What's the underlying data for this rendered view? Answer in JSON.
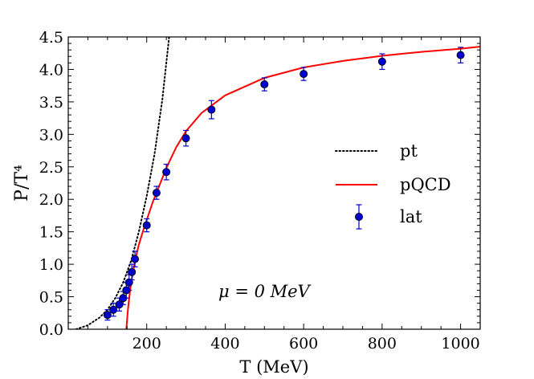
{
  "chart_data": {
    "type": "scatter",
    "title": "",
    "xlabel": "T (MeV)",
    "ylabel": "P/T⁴",
    "xlim": [
      0,
      1050
    ],
    "ylim": [
      0,
      4.5
    ],
    "x_ticks": [
      200,
      400,
      600,
      800,
      1000
    ],
    "y_ticks": [
      0.0,
      0.5,
      1.0,
      1.5,
      2.0,
      2.5,
      3.0,
      3.5,
      4.0,
      4.5
    ],
    "x_tick_labels": [
      "200",
      "400",
      "600",
      "800",
      "1000"
    ],
    "y_tick_labels": [
      "0.0",
      "0.5",
      "1.0",
      "1.5",
      "2.0",
      "2.5",
      "3.0",
      "3.5",
      "4.0",
      "4.5"
    ],
    "annotation": "μ = 0 MeV",
    "legend": {
      "placement": "center-right",
      "entries": [
        {
          "label": "pt",
          "style": "dotted",
          "color": "#000000"
        },
        {
          "label": "pQCD",
          "style": "solid",
          "color": "#ff0000"
        },
        {
          "label": "lat",
          "style": "marker-errorbar",
          "color": "#0000cc"
        }
      ]
    },
    "series": [
      {
        "name": "pt",
        "kind": "line",
        "style": "dotted",
        "color": "#000000",
        "x": [
          20,
          50,
          80,
          100,
          120,
          140,
          160,
          180,
          200,
          220,
          240,
          257
        ],
        "y": [
          0.0,
          0.06,
          0.18,
          0.3,
          0.48,
          0.72,
          1.05,
          1.5,
          2.05,
          2.7,
          3.55,
          4.5
        ]
      },
      {
        "name": "pQCD",
        "kind": "line",
        "style": "solid",
        "color": "#ff0000",
        "x": [
          148,
          152,
          158,
          165,
          172,
          180,
          190,
          200,
          215,
          230,
          250,
          275,
          300,
          340,
          400,
          500,
          600,
          700,
          800,
          900,
          1000,
          1050
        ],
        "y": [
          0.0,
          0.3,
          0.62,
          0.88,
          1.1,
          1.3,
          1.5,
          1.68,
          1.95,
          2.18,
          2.48,
          2.8,
          3.05,
          3.33,
          3.6,
          3.87,
          4.03,
          4.13,
          4.21,
          4.27,
          4.32,
          4.35
        ]
      },
      {
        "name": "lat",
        "kind": "scatter",
        "color": "#0000cc",
        "x": [
          100,
          115,
          130,
          140,
          148,
          155,
          162,
          170,
          200,
          225,
          250,
          300,
          365,
          500,
          600,
          800,
          1000
        ],
        "y": [
          0.22,
          0.3,
          0.38,
          0.48,
          0.6,
          0.72,
          0.88,
          1.08,
          1.6,
          2.1,
          2.42,
          2.94,
          3.38,
          3.77,
          3.93,
          4.12,
          4.22
        ],
        "err": [
          0.08,
          0.1,
          0.1,
          0.1,
          0.12,
          0.12,
          0.12,
          0.12,
          0.1,
          0.1,
          0.12,
          0.12,
          0.14,
          0.1,
          0.1,
          0.12,
          0.12
        ]
      }
    ]
  }
}
